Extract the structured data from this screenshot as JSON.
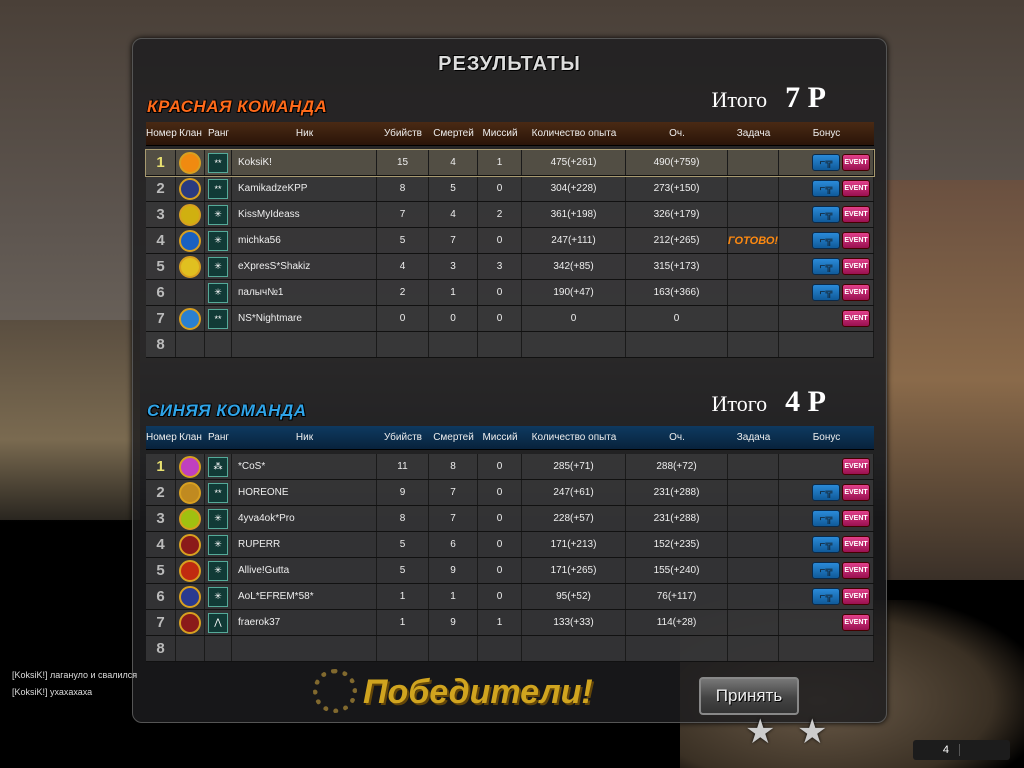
{
  "title": "РЕЗУЛЬТАТЫ",
  "columns": [
    "Номер",
    "Клан",
    "Ранг",
    "Ник",
    "Убийств",
    "Смертей",
    "Миссий",
    "Количество опыта",
    "Оч.",
    "Задача",
    "Бонус"
  ],
  "red_team": {
    "name": "КРАСНАЯ КОМАНДА",
    "total_label": "Итого",
    "total_value": "7",
    "total_unit": "P",
    "players": [
      {
        "num": "1",
        "clan": "#f08a10",
        "rank": "**",
        "nick": "KoksiK!",
        "kills": "15",
        "deaths": "4",
        "missions": "1",
        "exp": "475(+261)",
        "score": "490(+759)",
        "task": "",
        "weapon": true,
        "event": "EVENT",
        "me": true
      },
      {
        "num": "2",
        "clan": "#2a3a80",
        "rank": "**",
        "nick": "KamikadzeKPP",
        "kills": "8",
        "deaths": "5",
        "missions": "0",
        "exp": "304(+228)",
        "score": "273(+150)",
        "task": "",
        "weapon": true,
        "event": "EVENT"
      },
      {
        "num": "3",
        "clan": "#d0b010",
        "rank": "✳",
        "nick": "KissMyIdeass",
        "kills": "7",
        "deaths": "4",
        "missions": "2",
        "exp": "361(+198)",
        "score": "326(+179)",
        "task": "",
        "weapon": true,
        "event": "EVENT"
      },
      {
        "num": "4",
        "clan": "#1a60c0",
        "rank": "✳",
        "nick": "michka56",
        "kills": "5",
        "deaths": "7",
        "missions": "0",
        "exp": "247(+111)",
        "score": "212(+265)",
        "task": "ГОТОВО!",
        "weapon": true,
        "event": "EVENT"
      },
      {
        "num": "5",
        "clan": "#e0c020",
        "rank": "✳",
        "nick": "eXpresS*Shakiz",
        "kills": "4",
        "deaths": "3",
        "missions": "3",
        "exp": "342(+85)",
        "score": "315(+173)",
        "task": "",
        "weapon": true,
        "event": "EVENT"
      },
      {
        "num": "6",
        "clan": "",
        "rank": "✳",
        "nick": "палыч№1",
        "kills": "2",
        "deaths": "1",
        "missions": "0",
        "exp": "190(+47)",
        "score": "163(+366)",
        "task": "",
        "weapon": true,
        "event": "EVENT"
      },
      {
        "num": "7",
        "clan": "#2a80d0",
        "rank": "**",
        "nick": "NS*Nightmare",
        "kills": "0",
        "deaths": "0",
        "missions": "0",
        "exp": "0",
        "score": "0",
        "task": "",
        "weapon": false,
        "event": "EVENT"
      },
      {
        "num": "8"
      }
    ]
  },
  "blue_team": {
    "name": "СИНЯЯ КОМАНДА",
    "total_label": "Итого",
    "total_value": "4",
    "total_unit": "P",
    "players": [
      {
        "num": "1",
        "clan": "#c040c0",
        "rank": "⁂",
        "nick": "*CoS*",
        "kills": "11",
        "deaths": "8",
        "missions": "0",
        "exp": "285(+71)",
        "score": "288(+72)",
        "task": "",
        "weapon": false,
        "event": "EVENT"
      },
      {
        "num": "2",
        "clan": "#c08a20",
        "rank": "**",
        "nick": "HOREONE",
        "kills": "9",
        "deaths": "7",
        "missions": "0",
        "exp": "247(+61)",
        "score": "231(+288)",
        "task": "",
        "weapon": true,
        "event": "EVENT"
      },
      {
        "num": "3",
        "clan": "#a0c010",
        "rank": "✳",
        "nick": "4yva4ok*Pro",
        "kills": "8",
        "deaths": "7",
        "missions": "0",
        "exp": "228(+57)",
        "score": "231(+288)",
        "task": "",
        "weapon": true,
        "event": "EVENT"
      },
      {
        "num": "4",
        "clan": "#8a1a1a",
        "rank": "✳",
        "nick": "RUPERR",
        "kills": "5",
        "deaths": "6",
        "missions": "0",
        "exp": "171(+213)",
        "score": "152(+235)",
        "task": "",
        "weapon": true,
        "event": "EVENT"
      },
      {
        "num": "5",
        "clan": "#c02a10",
        "rank": "✳",
        "nick": "Allive!Gutta",
        "kills": "5",
        "deaths": "9",
        "missions": "0",
        "exp": "171(+265)",
        "score": "155(+240)",
        "task": "",
        "weapon": true,
        "event": "EVENT"
      },
      {
        "num": "6",
        "clan": "#2a3a90",
        "rank": "✳",
        "nick": "AoL*EFREM*58*",
        "kills": "1",
        "deaths": "1",
        "missions": "0",
        "exp": "95(+52)",
        "score": "76(+117)",
        "task": "",
        "weapon": true,
        "event": "EVENT"
      },
      {
        "num": "7",
        "clan": "#8a1a1a",
        "rank": "⋀",
        "nick": "fraerok37",
        "kills": "1",
        "deaths": "9",
        "missions": "1",
        "exp": "133(+33)",
        "score": "114(+28)",
        "task": "",
        "weapon": false,
        "event": "EVENT"
      },
      {
        "num": "8"
      }
    ]
  },
  "winners_stamp": "Победители!",
  "accept_label": "Принять",
  "chat": [
    "[KoksiK!] лагануло и свалился",
    "[KoksiK!] ухахахаха"
  ],
  "hud_value": "4"
}
